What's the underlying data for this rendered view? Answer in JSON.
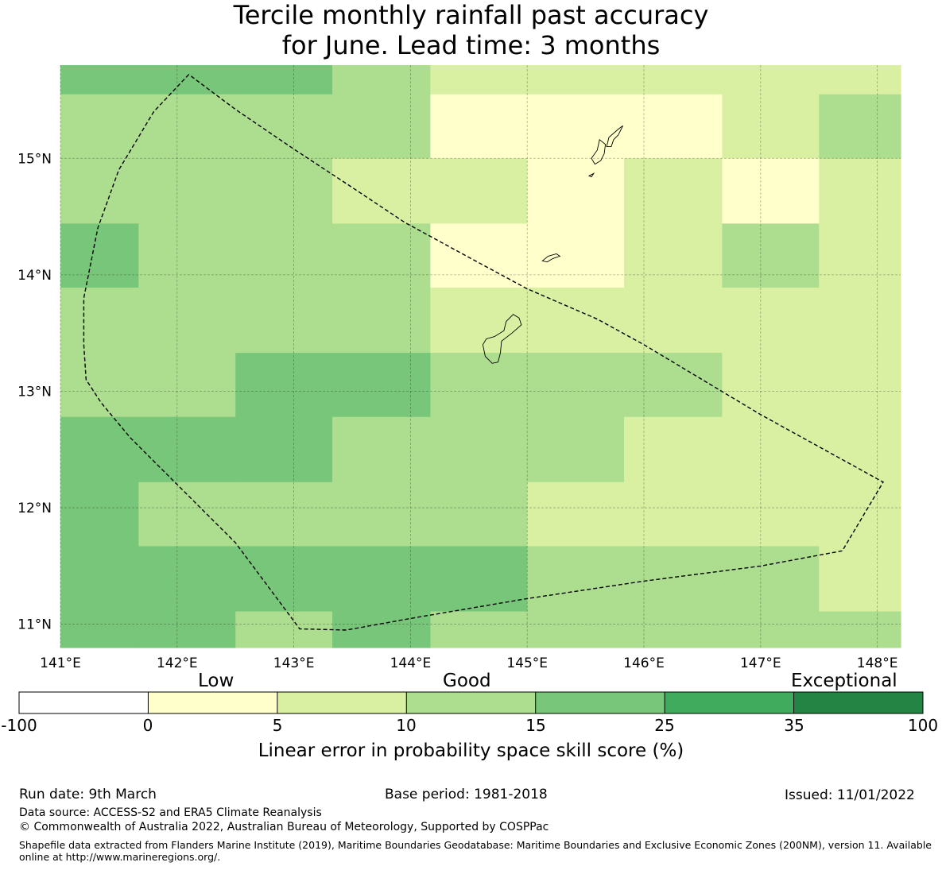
{
  "title": {
    "line1": "Tercile monthly rainfall past accuracy",
    "line2": "for June. Lead time: 3 months"
  },
  "map": {
    "lon_range": [
      141,
      148.2
    ],
    "lat_range": [
      10.8,
      15.8
    ],
    "lon_ticks": [
      "141°E",
      "142°E",
      "143°E",
      "144°E",
      "145°E",
      "146°E",
      "147°E",
      "148°E"
    ],
    "lat_ticks": [
      "11°N",
      "12°N",
      "13°N",
      "14°N",
      "15°N"
    ],
    "grid_lon_edges": [
      141,
      141.67,
      142.5,
      143.33,
      144.17,
      145,
      145.83,
      146.67,
      147.5,
      148.2
    ],
    "grid_lat_edges": [
      15.8,
      15.55,
      15.0,
      14.44,
      13.89,
      13.33,
      12.78,
      12.22,
      11.67,
      11.11,
      10.8
    ],
    "cell_classes": [
      [
        4,
        4,
        4,
        3,
        2,
        2,
        2,
        2,
        2
      ],
      [
        3,
        3,
        3,
        3,
        1,
        1,
        1,
        2,
        3
      ],
      [
        3,
        3,
        3,
        2,
        2,
        1,
        2,
        1,
        2
      ],
      [
        4,
        3,
        3,
        3,
        1,
        1,
        2,
        3,
        2
      ],
      [
        3,
        3,
        3,
        3,
        2,
        2,
        2,
        2,
        2
      ],
      [
        3,
        3,
        4,
        4,
        3,
        3,
        3,
        2,
        2
      ],
      [
        4,
        4,
        4,
        3,
        3,
        3,
        2,
        2,
        2
      ],
      [
        4,
        3,
        3,
        3,
        3,
        2,
        2,
        2,
        2
      ],
      [
        4,
        4,
        4,
        4,
        4,
        3,
        3,
        3,
        2
      ],
      [
        4,
        4,
        3,
        4,
        3,
        3,
        3,
        3,
        3
      ]
    ],
    "boundary_lonlat": [
      [
        142.1,
        15.72
      ],
      [
        141.8,
        15.4
      ],
      [
        141.5,
        14.9
      ],
      [
        141.32,
        14.4
      ],
      [
        141.2,
        13.8
      ],
      [
        141.2,
        13.4
      ],
      [
        141.22,
        13.1
      ],
      [
        141.35,
        12.9
      ],
      [
        141.6,
        12.6
      ],
      [
        142.0,
        12.2
      ],
      [
        142.5,
        11.7
      ],
      [
        143.05,
        10.96
      ],
      [
        143.45,
        10.95
      ],
      [
        144.0,
        11.05
      ],
      [
        145.0,
        11.22
      ],
      [
        146.0,
        11.37
      ],
      [
        147.0,
        11.5
      ],
      [
        147.7,
        11.63
      ],
      [
        148.05,
        12.22
      ],
      [
        147.0,
        12.8
      ],
      [
        146.0,
        13.4
      ],
      [
        145.6,
        13.62
      ],
      [
        145.0,
        13.88
      ],
      [
        144.5,
        14.15
      ],
      [
        143.95,
        14.45
      ],
      [
        143.5,
        14.75
      ],
      [
        143.0,
        15.08
      ],
      [
        142.5,
        15.42
      ],
      [
        142.1,
        15.72
      ]
    ],
    "islands_lonlat": [
      [
        [
          144.93,
          13.63
        ],
        [
          144.88,
          13.66
        ],
        [
          144.82,
          13.6
        ],
        [
          144.8,
          13.52
        ],
        [
          144.72,
          13.47
        ],
        [
          144.65,
          13.45
        ],
        [
          144.62,
          13.4
        ],
        [
          144.64,
          13.3
        ],
        [
          144.7,
          13.24
        ],
        [
          144.75,
          13.25
        ],
        [
          144.77,
          13.33
        ],
        [
          144.78,
          13.43
        ],
        [
          144.87,
          13.5
        ],
        [
          144.95,
          13.57
        ],
        [
          144.93,
          13.63
        ]
      ],
      [
        [
          145.13,
          14.12
        ],
        [
          145.18,
          14.16
        ],
        [
          145.25,
          14.18
        ],
        [
          145.28,
          14.16
        ],
        [
          145.22,
          14.14
        ],
        [
          145.17,
          14.11
        ],
        [
          145.13,
          14.12
        ]
      ],
      [
        [
          145.55,
          15.0
        ],
        [
          145.6,
          15.07
        ],
        [
          145.62,
          15.16
        ],
        [
          145.67,
          15.12
        ],
        [
          145.66,
          15.04
        ],
        [
          145.63,
          14.98
        ],
        [
          145.58,
          14.95
        ],
        [
          145.55,
          15.0
        ]
      ],
      [
        [
          145.68,
          15.1
        ],
        [
          145.7,
          15.18
        ],
        [
          145.78,
          15.25
        ],
        [
          145.82,
          15.28
        ],
        [
          145.78,
          15.2
        ],
        [
          145.74,
          15.16
        ],
        [
          145.72,
          15.1
        ],
        [
          145.68,
          15.1
        ]
      ],
      [
        [
          145.53,
          14.85
        ],
        [
          145.57,
          14.87
        ],
        [
          145.55,
          14.84
        ],
        [
          145.53,
          14.85
        ]
      ]
    ]
  },
  "colorbar": {
    "categories": [
      "Low",
      "Good",
      "Exceptional"
    ],
    "ticks": [
      "-100",
      "0",
      "5",
      "10",
      "15",
      "25",
      "35",
      "100"
    ],
    "colors": [
      "#ffffff",
      "#ffffcc",
      "#d9f0a3",
      "#addd8e",
      "#78c679",
      "#41ab5d",
      "#238443"
    ],
    "label": "Linear error in probability space skill score (%)"
  },
  "footer": {
    "run_date": "Run date: 9th March",
    "base_period": "Base period: 1981-2018",
    "issued": "Issued: 11/01/2022",
    "data_source": "Data source: ACCESS-S2 and ERA5 Climate Reanalysis",
    "copyright": "© Commonwealth of Australia 2022, Australian Bureau of Meteorology, Supported by COSPPac",
    "shapefile": "Shapefile data extracted from Flanders Marine Institute (2019), Maritime Boundaries Geodatabase: Maritime Boundaries and Exclusive Economic Zones (200NM), version 11. Available online at http://www.marineregions.org/."
  }
}
